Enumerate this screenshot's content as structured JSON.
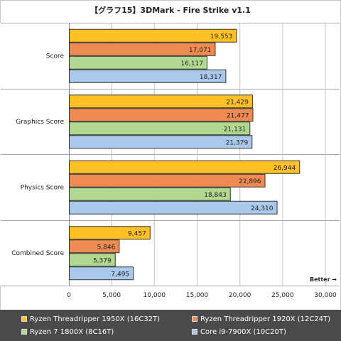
{
  "chart_data": {
    "type": "bar",
    "orientation": "horizontal",
    "title": "【グラフ15】3DMark - Fire Strike v1.1",
    "categories": [
      "Score",
      "Graphics Score",
      "Physics Score",
      "Combined Score"
    ],
    "series": [
      {
        "name": "Ryzen Threadripper 1950X (16C32T)",
        "color": "#ffc126",
        "values": [
          19553,
          21429,
          26944,
          9457
        ]
      },
      {
        "name": "Ryzen Threadripper 1920X (12C24T)",
        "color": "#ef8b52",
        "values": [
          17071,
          21477,
          22896,
          5846
        ]
      },
      {
        "name": "Ryzen 7 1800X (8C16T)",
        "color": "#b0d88e",
        "values": [
          16117,
          21131,
          18843,
          5379
        ]
      },
      {
        "name": "Core i9-7900X (10C20T)",
        "color": "#a9c8ea",
        "values": [
          18317,
          21379,
          24310,
          7495
        ]
      }
    ],
    "value_labels": [
      [
        "19,553",
        "21,429",
        "26,944",
        "9,457"
      ],
      [
        "17,071",
        "21,477",
        "22,896",
        "5,846"
      ],
      [
        "16,117",
        "21,131",
        "18,843",
        "5,379"
      ],
      [
        "18,317",
        "21,379",
        "24,310",
        "7,495"
      ]
    ],
    "xlim": [
      0,
      30000
    ],
    "xticks": [
      0,
      5000,
      10000,
      15000,
      20000,
      25000,
      30000
    ],
    "xtick_labels": [
      "0",
      "5,000",
      "10,000",
      "15,000",
      "20,000",
      "25,000",
      "30,000"
    ],
    "annotation": "Better →",
    "grid": true,
    "legend_position": "bottom"
  },
  "legend": {
    "items": [
      {
        "label": "Ryzen Threadripper 1950X (16C32T)",
        "color": "#ffc126"
      },
      {
        "label": "Ryzen Threadripper 1920X (12C24T)",
        "color": "#ef8b52"
      },
      {
        "label": "Ryzen 7 1800X (8C16T)",
        "color": "#b0d88e"
      },
      {
        "label": "Core i9-7900X (10C20T)",
        "color": "#a9c8ea"
      }
    ]
  }
}
